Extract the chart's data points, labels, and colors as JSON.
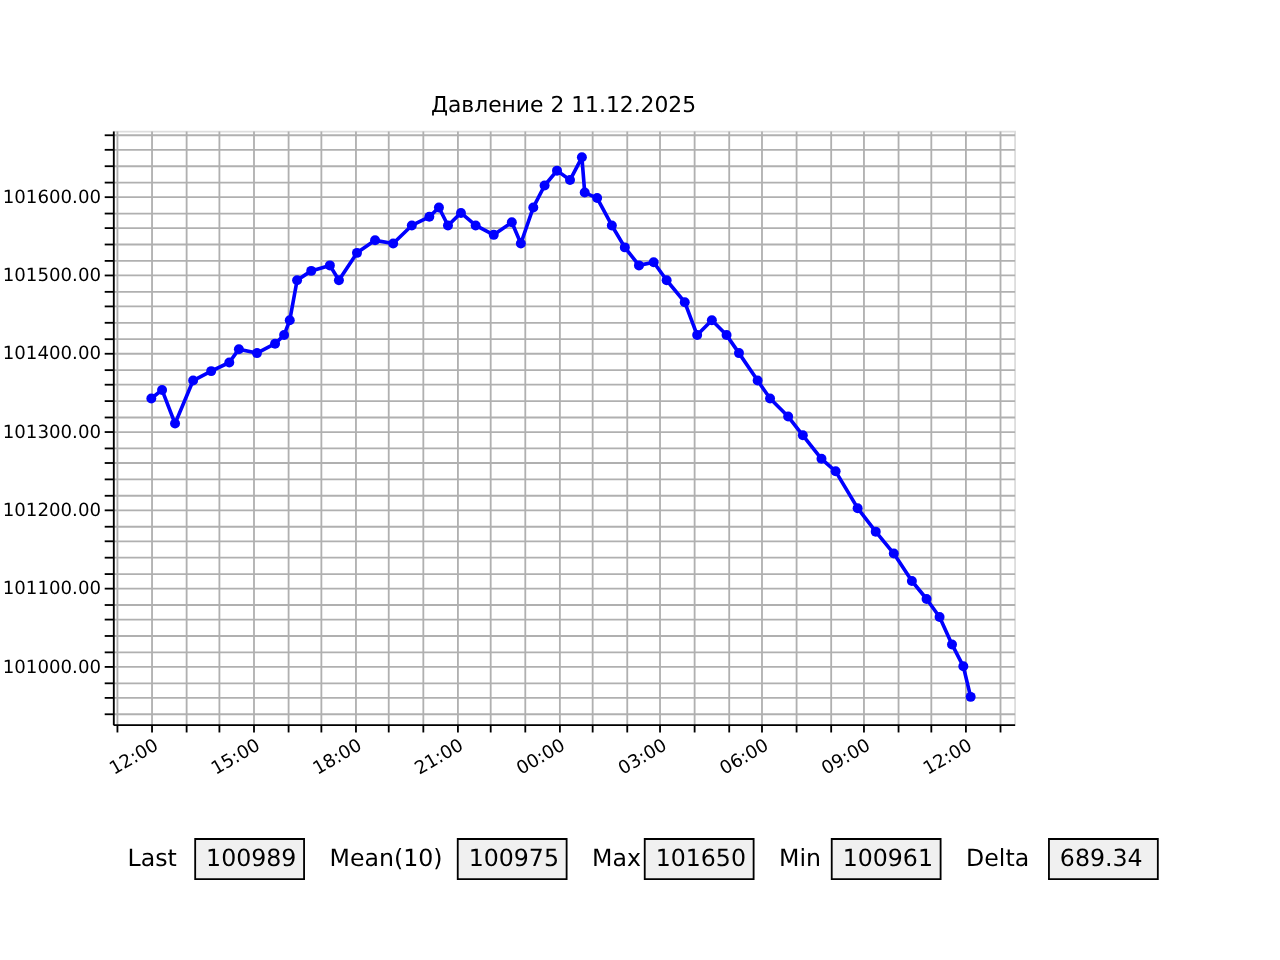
{
  "chart_data": {
    "type": "line",
    "title": "Давление 2 11.12.2025",
    "marker": "circle",
    "line_style": "solid",
    "grid": true,
    "x": [
      "2025-12-10T12:00",
      "2025-12-10T12:19",
      "2025-12-10T12:42",
      "2025-12-10T13:14",
      "2025-12-10T13:46",
      "2025-12-10T14:18",
      "2025-12-10T14:35",
      "2025-12-10T15:07",
      "2025-12-10T15:39",
      "2025-12-10T15:55",
      "2025-12-10T16:05",
      "2025-12-10T16:18",
      "2025-12-10T16:43",
      "2025-12-10T17:16",
      "2025-12-10T17:32",
      "2025-12-10T18:04",
      "2025-12-10T18:36",
      "2025-12-10T19:08",
      "2025-12-10T19:41",
      "2025-12-10T20:12",
      "2025-12-10T20:29",
      "2025-12-10T20:45",
      "2025-12-10T21:08",
      "2025-12-10T21:34",
      "2025-12-10T22:06",
      "2025-12-10T22:38",
      "2025-12-10T22:54",
      "2025-12-10T23:16",
      "2025-12-10T23:36",
      "2025-12-10T23:58",
      "2025-12-11T00:21",
      "2025-12-11T00:42",
      "2025-12-11T00:47",
      "2025-12-11T01:09",
      "2025-12-11T01:35",
      "2025-12-11T01:58",
      "2025-12-11T02:23",
      "2025-12-11T02:49",
      "2025-12-11T03:12",
      "2025-12-11T03:44",
      "2025-12-11T04:06",
      "2025-12-11T04:32",
      "2025-12-11T04:58",
      "2025-12-11T05:20",
      "2025-12-11T05:53",
      "2025-12-11T06:15",
      "2025-12-11T06:47",
      "2025-12-11T07:13",
      "2025-12-11T07:46",
      "2025-12-11T08:11",
      "2025-12-11T08:50",
      "2025-12-11T09:22",
      "2025-12-11T09:54",
      "2025-12-11T10:26",
      "2025-12-11T10:52",
      "2025-12-11T11:15",
      "2025-12-11T11:37",
      "2025-12-11T11:57",
      "2025-12-11T12:10"
    ],
    "series": [
      {
        "color": "#0000ff",
        "values": [
          101342,
          101353,
          101310,
          101365,
          101377,
          101388,
          101405,
          101400,
          101412,
          101423,
          101442,
          101493,
          101505,
          101512,
          101493,
          101528,
          101544,
          101540,
          101563,
          101574,
          101586,
          101563,
          101579,
          101563,
          101551,
          101567,
          101540,
          101586,
          101614,
          101633,
          101621,
          101650,
          101605,
          101598,
          101563,
          101535,
          101512,
          101516,
          101493,
          101465,
          101423,
          101442,
          101423,
          101400,
          101365,
          101342,
          101319,
          101295,
          101265,
          101249,
          101202,
          101172,
          101144,
          101109,
          101086,
          101063,
          101028,
          101000,
          100961
        ]
      }
    ],
    "xlim": [
      "2025-12-10T10:52",
      "2025-12-11T13:27"
    ],
    "xticks": [
      {
        "value": "2025-12-10T11:00",
        "label": null
      },
      {
        "value": "2025-12-10T12:00",
        "label": "12:00"
      },
      {
        "value": "2025-12-10T13:00",
        "label": null
      },
      {
        "value": "2025-12-10T14:00",
        "label": null
      },
      {
        "value": "2025-12-10T15:00",
        "label": "15:00"
      },
      {
        "value": "2025-12-10T16:00",
        "label": null
      },
      {
        "value": "2025-12-10T17:00",
        "label": null
      },
      {
        "value": "2025-12-10T18:00",
        "label": "18:00"
      },
      {
        "value": "2025-12-10T19:00",
        "label": null
      },
      {
        "value": "2025-12-10T20:00",
        "label": null
      },
      {
        "value": "2025-12-10T21:00",
        "label": "21:00"
      },
      {
        "value": "2025-12-10T22:00",
        "label": null
      },
      {
        "value": "2025-12-10T23:00",
        "label": null
      },
      {
        "value": "2025-12-11T00:00",
        "label": "00:00"
      },
      {
        "value": "2025-12-11T01:00",
        "label": null
      },
      {
        "value": "2025-12-11T02:00",
        "label": null
      },
      {
        "value": "2025-12-11T03:00",
        "label": "03:00"
      },
      {
        "value": "2025-12-11T04:00",
        "label": null
      },
      {
        "value": "2025-12-11T05:00",
        "label": null
      },
      {
        "value": "2025-12-11T06:00",
        "label": "06:00"
      },
      {
        "value": "2025-12-11T07:00",
        "label": null
      },
      {
        "value": "2025-12-11T08:00",
        "label": null
      },
      {
        "value": "2025-12-11T09:00",
        "label": "09:00"
      },
      {
        "value": "2025-12-11T10:00",
        "label": null
      },
      {
        "value": "2025-12-11T11:00",
        "label": null
      },
      {
        "value": "2025-12-11T12:00",
        "label": "12:00"
      },
      {
        "value": "2025-12-11T13:00",
        "label": null
      }
    ],
    "ylim": [
      100926,
      101684
    ],
    "yticks": [
      {
        "value": 100940,
        "label": null
      },
      {
        "value": 100960,
        "label": null
      },
      {
        "value": 100980,
        "label": null
      },
      {
        "value": 101000,
        "label": "101000.00"
      },
      {
        "value": 101020,
        "label": null
      },
      {
        "value": 101040,
        "label": null
      },
      {
        "value": 101060,
        "label": null
      },
      {
        "value": 101080,
        "label": null
      },
      {
        "value": 101100,
        "label": "101100.00"
      },
      {
        "value": 101120,
        "label": null
      },
      {
        "value": 101140,
        "label": null
      },
      {
        "value": 101160,
        "label": null
      },
      {
        "value": 101180,
        "label": null
      },
      {
        "value": 101200,
        "label": "101200.00"
      },
      {
        "value": 101220,
        "label": null
      },
      {
        "value": 101240,
        "label": null
      },
      {
        "value": 101260,
        "label": null
      },
      {
        "value": 101280,
        "label": null
      },
      {
        "value": 101300,
        "label": "101300.00"
      },
      {
        "value": 101320,
        "label": null
      },
      {
        "value": 101340,
        "label": null
      },
      {
        "value": 101360,
        "label": null
      },
      {
        "value": 101380,
        "label": null
      },
      {
        "value": 101400,
        "label": "101400.00"
      },
      {
        "value": 101420,
        "label": null
      },
      {
        "value": 101440,
        "label": null
      },
      {
        "value": 101460,
        "label": null
      },
      {
        "value": 101480,
        "label": null
      },
      {
        "value": 101500,
        "label": "101500.00"
      },
      {
        "value": 101520,
        "label": null
      },
      {
        "value": 101540,
        "label": null
      },
      {
        "value": 101560,
        "label": null
      },
      {
        "value": 101580,
        "label": null
      },
      {
        "value": 101600,
        "label": "101600.00"
      },
      {
        "value": 101620,
        "label": null
      },
      {
        "value": 101640,
        "label": null
      },
      {
        "value": 101660,
        "label": null
      },
      {
        "value": 101680,
        "label": null
      }
    ],
    "annotations": [
      "Last",
      "100989",
      "Mean(10)",
      "100975",
      "Max",
      "101650",
      "Min",
      "100961",
      "Delta",
      "689.34"
    ]
  }
}
